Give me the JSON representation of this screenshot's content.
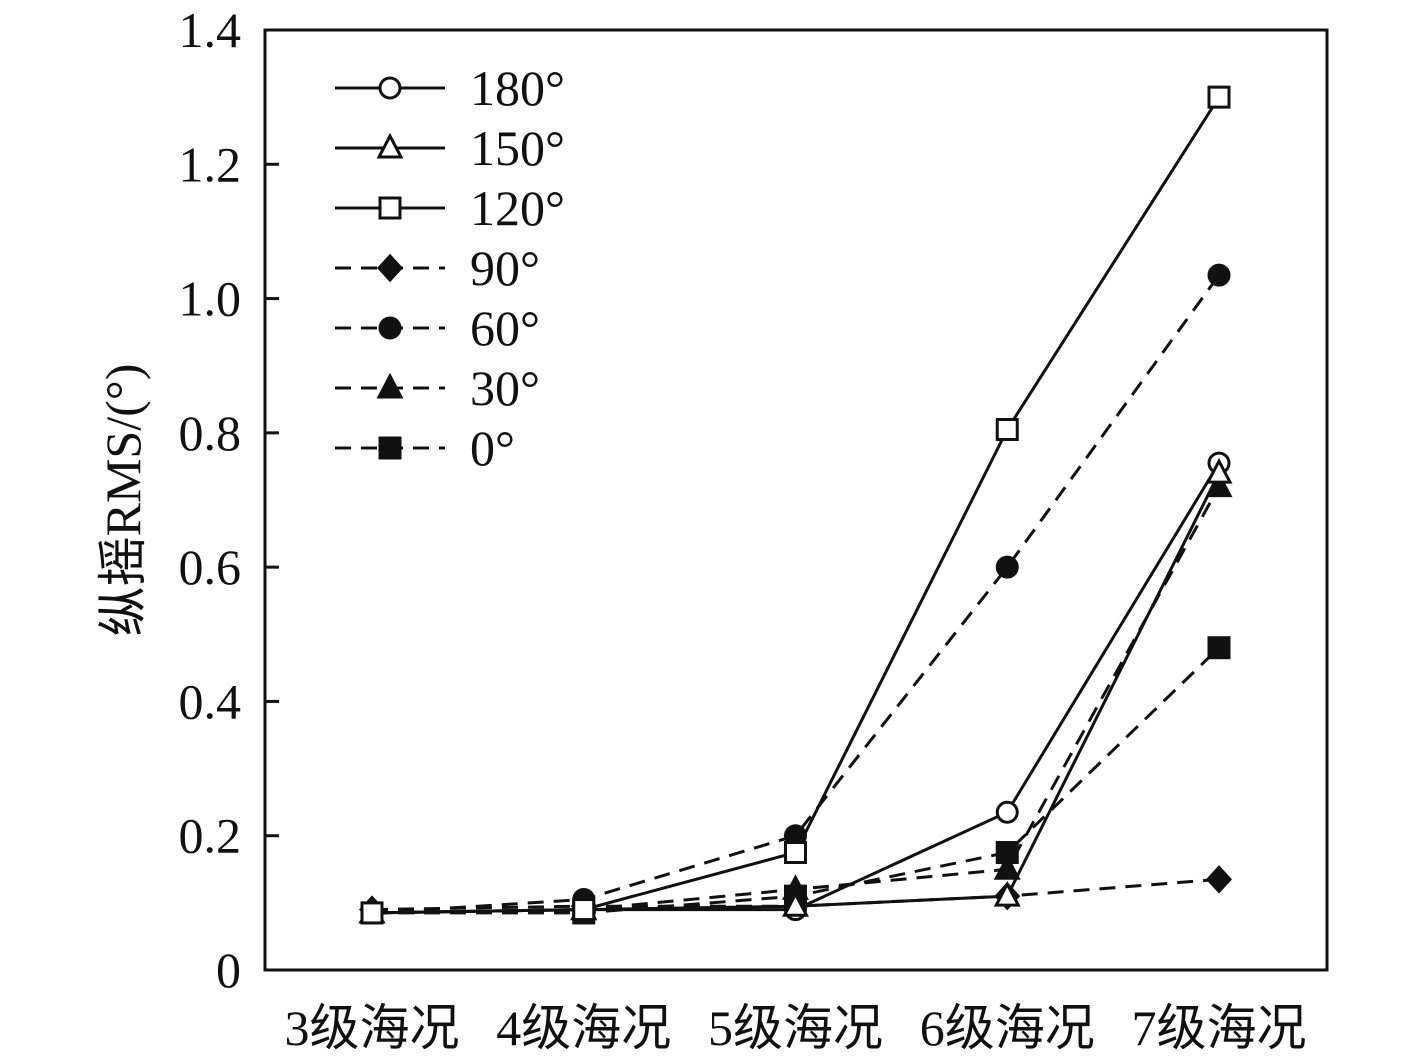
{
  "chart_data": {
    "type": "line",
    "title": "",
    "xlabel": "",
    "ylabel": "纵摇RMS/(°)",
    "categories": [
      "3级海况",
      "4级海况",
      "5级海况",
      "6级海况",
      "7级海况"
    ],
    "yticks": [
      "0",
      "0.2",
      "0.4",
      "0.6",
      "0.8",
      "1.0",
      "1.2",
      "1.4"
    ],
    "ylim": [
      0,
      1.4
    ],
    "grid": false,
    "legend_position": "top-left",
    "series": [
      {
        "name": "180°",
        "marker": "circle-open",
        "dash": "solid",
        "values": [
          0.085,
          0.09,
          0.09,
          0.235,
          0.755
        ]
      },
      {
        "name": "150°",
        "marker": "triangle-open",
        "dash": "solid",
        "values": [
          0.085,
          0.09,
          0.095,
          0.11,
          0.74
        ]
      },
      {
        "name": "120°",
        "marker": "square-open",
        "dash": "solid",
        "values": [
          0.085,
          0.09,
          0.175,
          0.805,
          1.3
        ]
      },
      {
        "name": "90°",
        "marker": "diamond-filled",
        "dash": "dashed",
        "values": [
          0.09,
          0.095,
          0.095,
          0.11,
          0.135
        ]
      },
      {
        "name": "60°",
        "marker": "circle-filled",
        "dash": "dashed",
        "values": [
          0.085,
          0.105,
          0.2,
          0.6,
          1.035
        ]
      },
      {
        "name": "30°",
        "marker": "triangle-filled",
        "dash": "dashed",
        "values": [
          0.085,
          0.09,
          0.12,
          0.15,
          0.72
        ]
      },
      {
        "name": "0°",
        "marker": "square-filled",
        "dash": "dashed",
        "values": [
          0.085,
          0.085,
          0.11,
          0.175,
          0.48
        ]
      }
    ]
  }
}
